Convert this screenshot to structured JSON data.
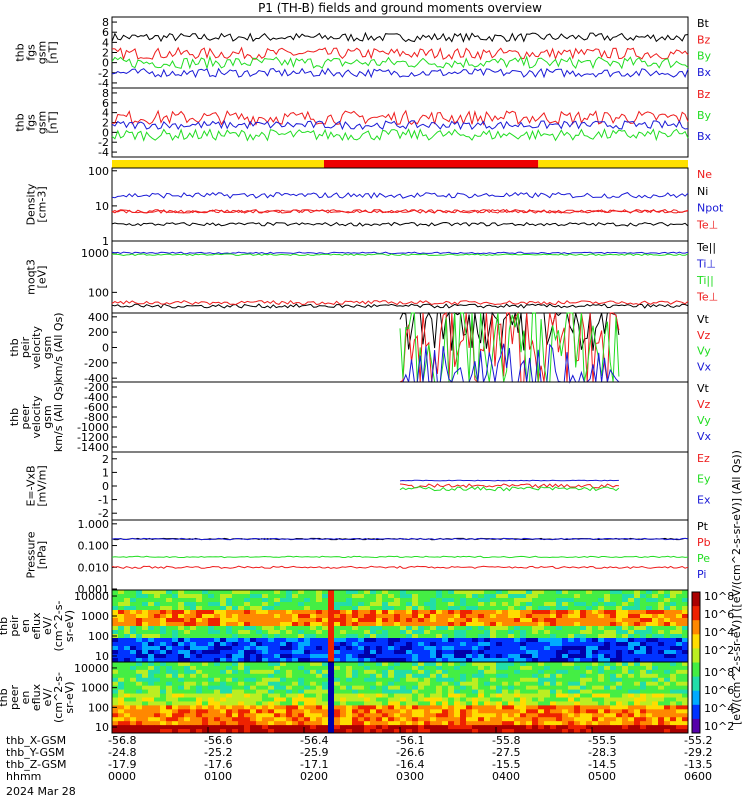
{
  "title": "P1 (TH-B) fields and ground moments overview",
  "colors": {
    "black": "#000000",
    "red": "#ee1c1c",
    "green": "#22dd22",
    "blue": "#1a1ad6"
  },
  "chart_data": [
    {
      "type": "line",
      "ylabel": [
        "thb",
        "fgs",
        "gsm",
        "[nT]"
      ],
      "ylim": [
        -5,
        9
      ],
      "yticks": [
        "8",
        "6",
        "4",
        "2",
        "0",
        "-2",
        "-4"
      ],
      "series": [
        {
          "name": "Bt",
          "color": "black",
          "level": 5,
          "noise": 0.6
        },
        {
          "name": "Bz",
          "color": "red",
          "level": 1.8,
          "noise": 0.8
        },
        {
          "name": "By",
          "color": "green",
          "level": 0,
          "noise": 0.8
        },
        {
          "name": "Bx",
          "color": "blue",
          "level": -2,
          "noise": 0.6
        }
      ]
    },
    {
      "type": "line",
      "ylabel": [
        "thb",
        "fgs",
        "gsm",
        "[nT]"
      ],
      "ylim": [
        -5,
        9
      ],
      "yticks": [
        "8",
        "6",
        "4",
        "2",
        "0",
        "-2",
        "-4"
      ],
      "series": [
        {
          "name": "Bz",
          "color": "red",
          "level": 3,
          "noise": 1
        },
        {
          "name": "By",
          "color": "green",
          "level": -0.5,
          "noise": 0.8
        },
        {
          "name": "Bx",
          "color": "blue",
          "level": 1.5,
          "noise": 0.6
        }
      ]
    },
    {
      "type": "bar",
      "name": "region-bar",
      "segments": [
        {
          "from": 0,
          "to": 0.368,
          "color": "#ffe000"
        },
        {
          "from": 0.368,
          "to": 0.74,
          "color": "#ee0000"
        },
        {
          "from": 0.74,
          "to": 1,
          "color": "#ffe000"
        }
      ]
    },
    {
      "type": "line",
      "scale": "log",
      "ylabel": [
        "Density",
        "[cm-3]"
      ],
      "ylim": [
        1,
        120
      ],
      "yticks": [
        "100",
        "10",
        "1"
      ],
      "series": [
        {
          "name": "Ne",
          "color": "red",
          "level": 7,
          "noise": 0.05
        },
        {
          "name": "Ni",
          "color": "black",
          "level": 3,
          "noise": 0.05
        },
        {
          "name": "Npot",
          "color": "blue",
          "level": 20,
          "noise": 0.08
        },
        {
          "name": "Te⊥",
          "color": "red",
          "level": 7,
          "noise": 0.05
        }
      ]
    },
    {
      "type": "line",
      "scale": "log",
      "ylabel": [
        "moqt3",
        "[eV]"
      ],
      "ylim": [
        30,
        2000
      ],
      "yticks": [
        "1000",
        "100"
      ],
      "series": [
        {
          "name": "Te||",
          "color": "black",
          "level": 45,
          "noise": 0.05
        },
        {
          "name": "Ti⊥",
          "color": "blue",
          "level": 1000,
          "noise": 0.02
        },
        {
          "name": "Ti||",
          "color": "green",
          "level": 900,
          "noise": 0.02
        },
        {
          "name": "Te⊥",
          "color": "red",
          "level": 55,
          "noise": 0.05
        }
      ]
    },
    {
      "type": "line",
      "ylabel": [
        "thb",
        "peir",
        "velocity",
        "gsm",
        "km/s (All Qs)"
      ],
      "ylim": [
        -450,
        450
      ],
      "yticks": [
        "400",
        "200",
        "0",
        "-200",
        "-400"
      ],
      "series": [
        {
          "name": "Vt",
          "color": "black",
          "level": 400,
          "noise": 5
        },
        {
          "name": "Vz",
          "color": "red",
          "level": 0,
          "noise": 8
        },
        {
          "name": "Vy",
          "color": "green",
          "level": -5,
          "noise": 8
        },
        {
          "name": "Vx",
          "color": "blue",
          "level": -400,
          "noise": 5
        }
      ]
    },
    {
      "type": "line",
      "ylabel": [
        "thb",
        "peer",
        "velocity",
        "gsm",
        "km/s (All Qs)"
      ],
      "ylim": [
        -1500,
        -100
      ],
      "yticks": [
        "-200",
        "-400",
        "-600",
        "-800",
        "-1000",
        "-1200",
        "-1400"
      ],
      "series": [
        {
          "name": "Vt",
          "color": "black"
        },
        {
          "name": "Vz",
          "color": "red"
        },
        {
          "name": "Vy",
          "color": "green"
        },
        {
          "name": "Vx",
          "color": "blue"
        }
      ]
    },
    {
      "type": "line",
      "ylabel": [
        "E=-VxB",
        "[mV/m]"
      ],
      "ylim": [
        -2.5,
        2.5
      ],
      "yticks": [
        "2",
        "1",
        "0",
        "-1",
        "-2"
      ],
      "series": [
        {
          "name": "Ez",
          "color": "red",
          "level": 0,
          "noise": 0.3
        },
        {
          "name": "Ey",
          "color": "green",
          "level": -0.2,
          "noise": 0.3
        },
        {
          "name": "Ex",
          "color": "blue",
          "level": 0.4,
          "noise": 0.05
        }
      ]
    },
    {
      "type": "line",
      "scale": "log",
      "ylabel": [
        "Pressure",
        "[nPa]"
      ],
      "ylim": [
        0.0009,
        1.5
      ],
      "yticks": [
        "1.000",
        "0.100",
        "0.010",
        "0.001"
      ],
      "series": [
        {
          "name": "Pt",
          "color": "black",
          "level": 0.2,
          "noise": 0.03
        },
        {
          "name": "Pb",
          "color": "red",
          "level": 0.01,
          "noise": 0.05
        },
        {
          "name": "Pe",
          "color": "green",
          "level": 0.03,
          "noise": 0.03
        },
        {
          "name": "Pi",
          "color": "blue",
          "level": 0.2,
          "noise": 0.03
        }
      ]
    },
    {
      "type": "heatmap",
      "ylabel": [
        "thb",
        "peir",
        "en",
        "eflux",
        "eV/",
        "(cm^2-s-",
        "sr-eV)"
      ],
      "scale": "log",
      "ylim": [
        5,
        20000
      ],
      "yticks": [
        "10000",
        "1000",
        "100",
        "10"
      ]
    },
    {
      "type": "heatmap",
      "ylabel": [
        "thb",
        "peer",
        "en",
        "eflux",
        "eV/",
        "(cm^2-s-",
        "sr-eV)"
      ],
      "scale": "log",
      "ylim": [
        5,
        20000
      ],
      "yticks": [
        "10000",
        "1000",
        "100",
        "10"
      ]
    }
  ],
  "colorbar": {
    "label": "[eV/(cm^2-s-sr-eV)] ([eV/(cm^2-s-sr-eV)] (All Qs))",
    "ticks_top": [
      "10^8",
      "10^6",
      "10^4",
      "10^2"
    ],
    "ticks_bottom": [
      "10^8",
      "10^6",
      "10^4",
      "10^2"
    ]
  },
  "xaxis": {
    "rows": [
      {
        "label": "thb_X-GSM",
        "values": [
          "-56.8",
          "-56.6",
          "-56.4",
          "-56.1",
          "-55.8",
          "-55.5",
          "-55.2"
        ]
      },
      {
        "label": "thb_Y-GSM",
        "values": [
          "-24.8",
          "-25.2",
          "-25.9",
          "-26.6",
          "-27.5",
          "-28.3",
          "-29.2"
        ]
      },
      {
        "label": "thb_Z-GSM",
        "values": [
          "-17.9",
          "-17.6",
          "-17.1",
          "-16.4",
          "-15.5",
          "-14.5",
          "-13.5"
        ]
      },
      {
        "label": "hhmm",
        "values": [
          "0000",
          "0100",
          "0200",
          "0300",
          "0400",
          "0500",
          "0600"
        ]
      }
    ],
    "date": "2024 Mar 28"
  }
}
